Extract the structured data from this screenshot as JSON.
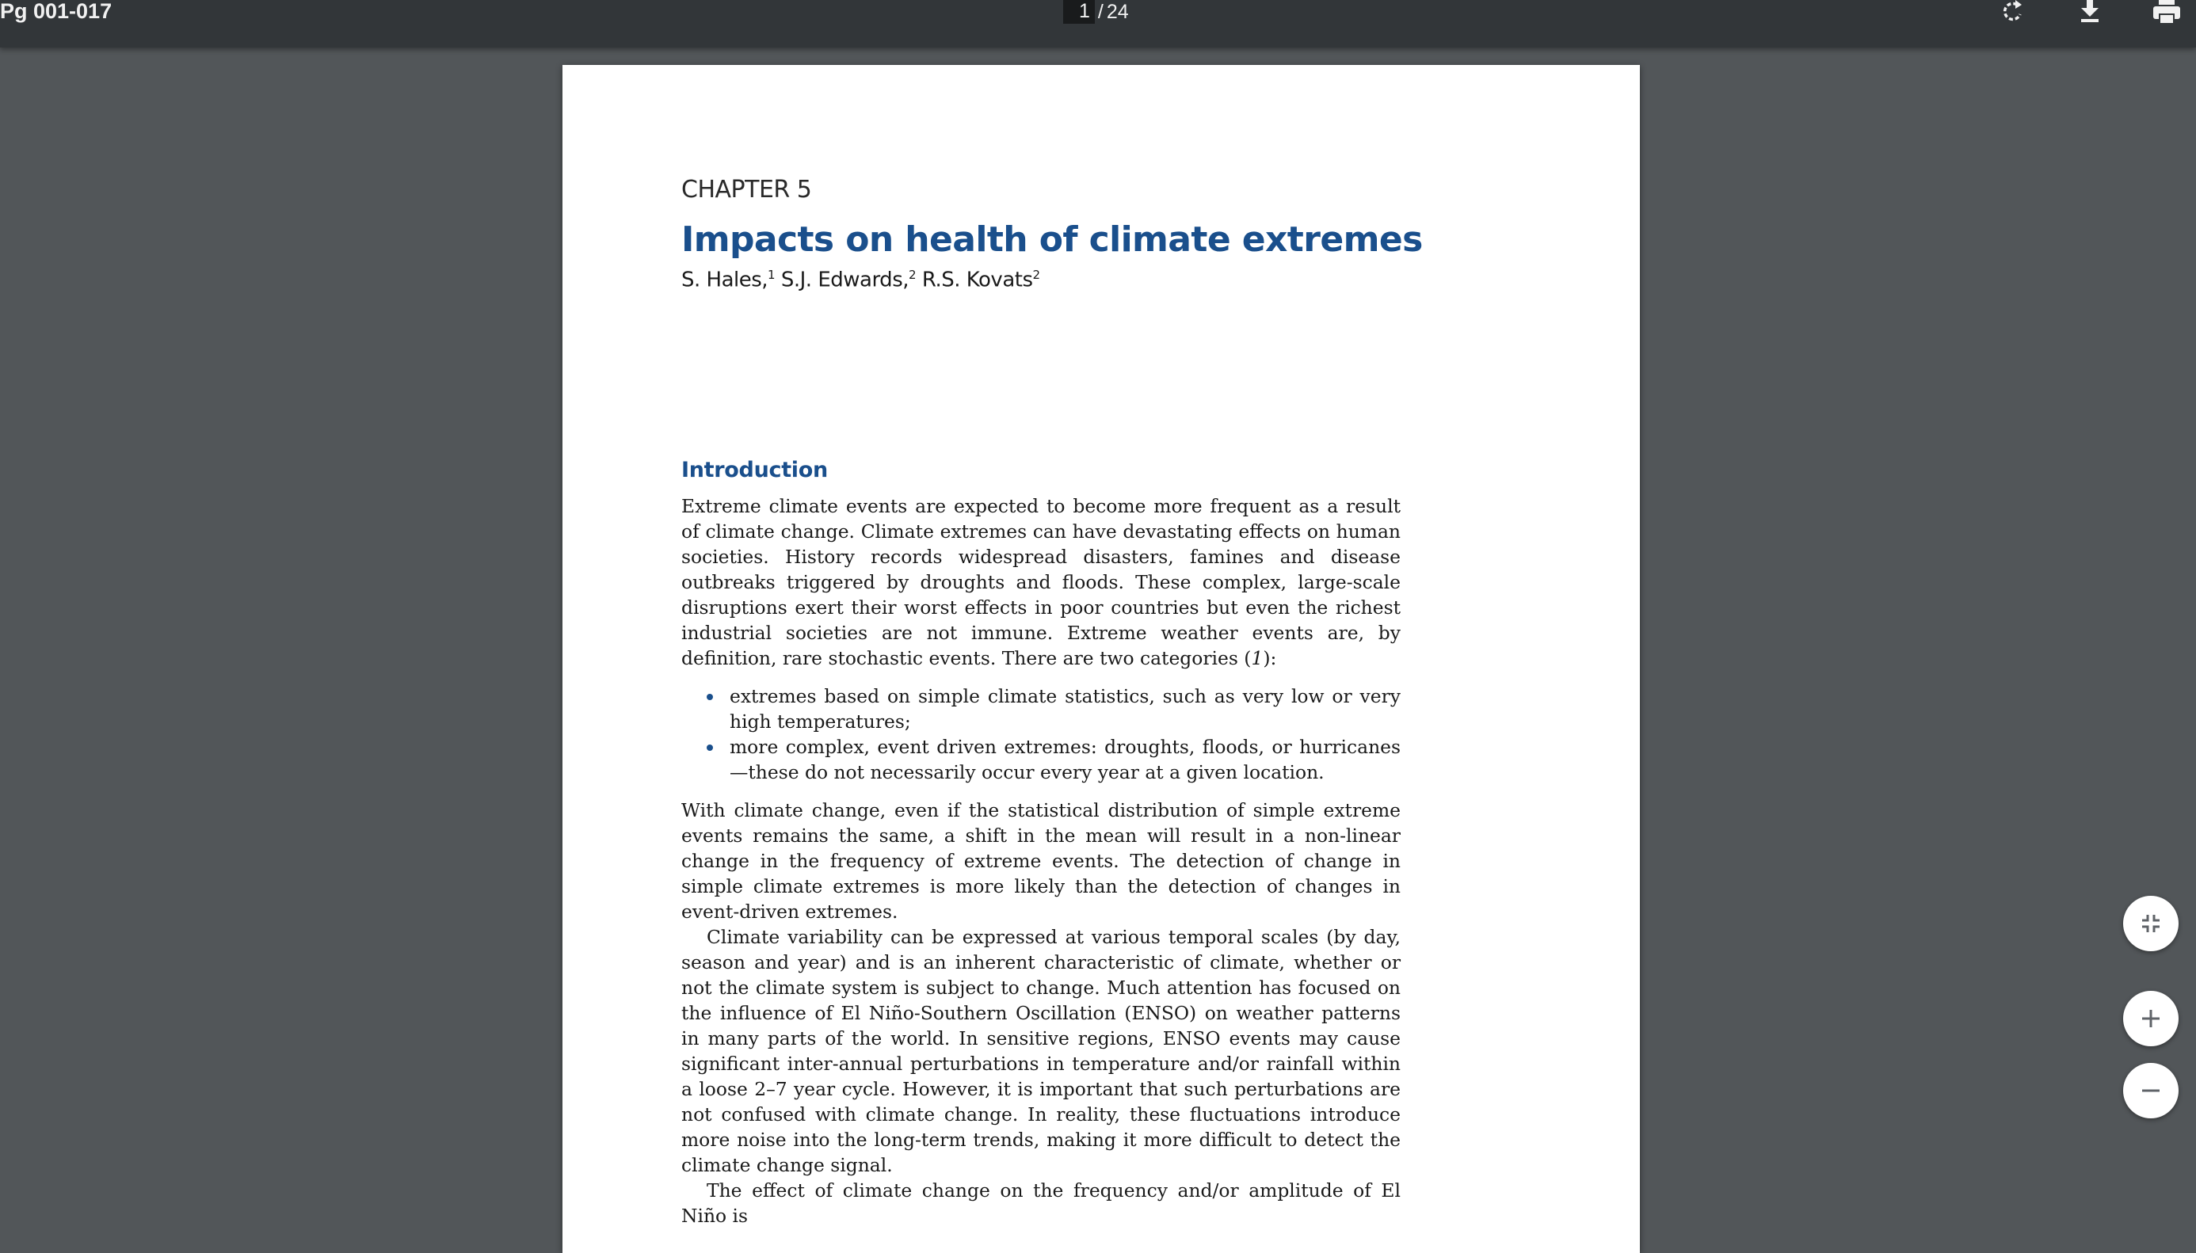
{
  "toolbar": {
    "title": "Pg 001-017",
    "page_current": "1",
    "page_separator": "/",
    "page_total": "24",
    "icons": [
      "rotate-icon",
      "download-icon",
      "print-icon"
    ]
  },
  "document": {
    "chapter_label": "CHAPTER 5",
    "chapter_title": "Impacts on health of climate extremes",
    "authors": [
      {
        "name": "S. Hales,",
        "sup": "1"
      },
      {
        "name": "S.J. Edwards,",
        "sup": "2"
      },
      {
        "name": "R.S. Kovats",
        "sup": "2"
      }
    ],
    "section_heading": "Introduction",
    "paragraphs": {
      "p1": "Extreme climate events are expected to become more frequent as a result of climate change. Climate extremes can have devastating effects on human soci­eties. History records widespread disasters, famines and disease outbreaks trig­gered by droughts and floods. These complex, large-scale disruptions exert their worst effects in poor countries but even the richest industrial societies are not immune. Extreme weather events are, by definition, rare stochastic events. There are two categories (",
      "p1_ref": "1",
      "p1_end": "):",
      "bullets": [
        "extremes based on simple climate statistics, such as very low or very high temperatures;",
        "more complex, event driven extremes: droughts, floods, or hurricanes—these do not necessarily occur every year at a given location."
      ],
      "p2": "With climate change, even if the statistical distribution of simple extreme events remains the same, a shift in the mean will result in a non-linear change in the frequency of extreme events. The detection of change in simple climate extremes is more likely than the detection of changes in event-driven extremes.",
      "p3": "Climate variability can be expressed at various temporal scales (by day, season and year) and is an inherent characteristic of climate, whether or not the climate system is subject to change. Much attention has focused on the influence of El Niño-Southern Oscillation (ENSO) on weather patterns in many parts of the world. In sensitive regions, ENSO events may cause significant inter-annual per­turbations in temperature and/or rainfall within a loose 2–7 year cycle. However, it is important that such perturbations are not confused with climate change. In reality, these fluctuations introduce more noise into the long-term trends, making it more difficult to detect the climate change signal.",
      "p4": "The effect of climate change on the frequency and/or amplitude of El Niño is"
    }
  },
  "controls": {
    "fit_icon": "fit-to-page-icon",
    "zoom_in_icon": "zoom-in-icon",
    "zoom_out_icon": "zoom-out-icon"
  },
  "colors": {
    "toolbar_bg": "#323639",
    "viewer_bg": "#525659",
    "heading_blue": "#1a4f8c",
    "page_bg": "#ffffff"
  }
}
